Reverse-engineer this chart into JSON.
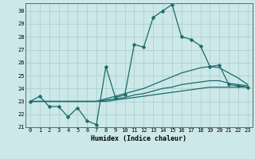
{
  "title": "",
  "xlabel": "Humidex (Indice chaleur)",
  "ylabel": "",
  "bg_color": "#cce8e8",
  "grid_color": "#aacccc",
  "line_color": "#1a6b6b",
  "xlim": [
    -0.5,
    23.5
  ],
  "ylim": [
    21,
    30.6
  ],
  "yticks": [
    21,
    22,
    23,
    24,
    25,
    26,
    27,
    28,
    29,
    30
  ],
  "xticks": [
    0,
    1,
    2,
    3,
    4,
    5,
    6,
    7,
    8,
    9,
    10,
    11,
    12,
    13,
    14,
    15,
    16,
    17,
    18,
    19,
    20,
    21,
    22,
    23
  ],
  "series": [
    [
      23.0,
      23.4,
      22.6,
      22.6,
      21.8,
      22.5,
      21.5,
      21.2,
      25.7,
      23.3,
      23.5,
      27.4,
      27.2,
      29.5,
      30.0,
      30.5,
      28.0,
      27.8,
      27.3,
      25.7,
      25.8,
      24.3,
      24.2,
      24.1
    ],
    [
      23.0,
      23.0,
      23.0,
      23.0,
      23.0,
      23.0,
      23.0,
      23.0,
      23.2,
      23.4,
      23.6,
      23.8,
      24.0,
      24.3,
      24.6,
      24.9,
      25.2,
      25.4,
      25.6,
      25.7,
      25.6,
      25.2,
      24.8,
      24.3
    ],
    [
      23.0,
      23.0,
      23.0,
      23.0,
      23.0,
      23.0,
      23.0,
      23.0,
      23.1,
      23.2,
      23.3,
      23.5,
      23.6,
      23.8,
      24.0,
      24.1,
      24.3,
      24.4,
      24.5,
      24.6,
      24.6,
      24.4,
      24.3,
      24.2
    ],
    [
      23.0,
      23.0,
      23.0,
      23.0,
      23.0,
      23.0,
      23.0,
      23.0,
      23.0,
      23.1,
      23.2,
      23.3,
      23.4,
      23.5,
      23.6,
      23.7,
      23.8,
      23.9,
      24.0,
      24.1,
      24.1,
      24.1,
      24.1,
      24.1
    ]
  ],
  "tick_fontsize": 5.0,
  "xlabel_fontsize": 6.0,
  "marker_size": 2.5,
  "line_width": 0.9
}
